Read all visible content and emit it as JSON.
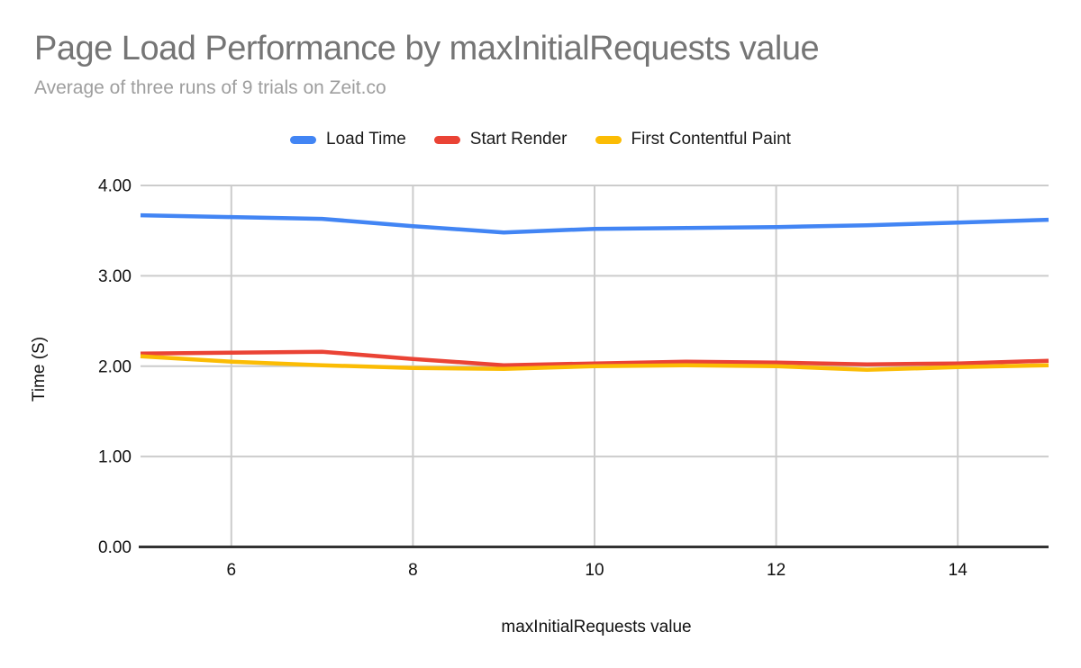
{
  "chart_data": {
    "type": "line",
    "title": "Page Load Performance by maxInitialRequests value",
    "subtitle": "Average of three runs of 9 trials on Zeit.co",
    "xlabel": "maxInitialRequests value",
    "ylabel": "Time (S)",
    "x": [
      5,
      6,
      7,
      8,
      9,
      10,
      11,
      12,
      13,
      14,
      15
    ],
    "series": [
      {
        "name": "Load Time",
        "color": "#4285f4",
        "values": [
          3.67,
          3.65,
          3.63,
          3.55,
          3.48,
          3.52,
          3.53,
          3.54,
          3.56,
          3.59,
          3.62
        ]
      },
      {
        "name": "Start Render",
        "color": "#ea4335",
        "values": [
          2.14,
          2.15,
          2.16,
          2.08,
          2.01,
          2.03,
          2.05,
          2.04,
          2.02,
          2.03,
          2.06
        ]
      },
      {
        "name": "First Contentful Paint",
        "color": "#fbbc04",
        "values": [
          2.11,
          2.05,
          2.01,
          1.98,
          1.97,
          2.0,
          2.01,
          2.0,
          1.96,
          1.99,
          2.01
        ]
      }
    ],
    "xlim": [
      5,
      15
    ],
    "ylim": [
      0,
      4
    ],
    "x_ticks": [
      "6",
      "8",
      "10",
      "12",
      "14"
    ],
    "x_tick_values": [
      6,
      8,
      10,
      12,
      14
    ],
    "y_ticks": [
      "0.00",
      "1.00",
      "2.00",
      "3.00",
      "4.00"
    ],
    "y_tick_values": [
      0,
      1,
      2,
      3,
      4
    ],
    "grid": true,
    "legend_position": "top",
    "colors": {
      "title": "#757575",
      "subtitle": "#9e9e9e",
      "gridline": "#cccccc",
      "axis_line": "#333333",
      "tick_label": "#111111",
      "legend_label": "#1a1a1a"
    }
  }
}
